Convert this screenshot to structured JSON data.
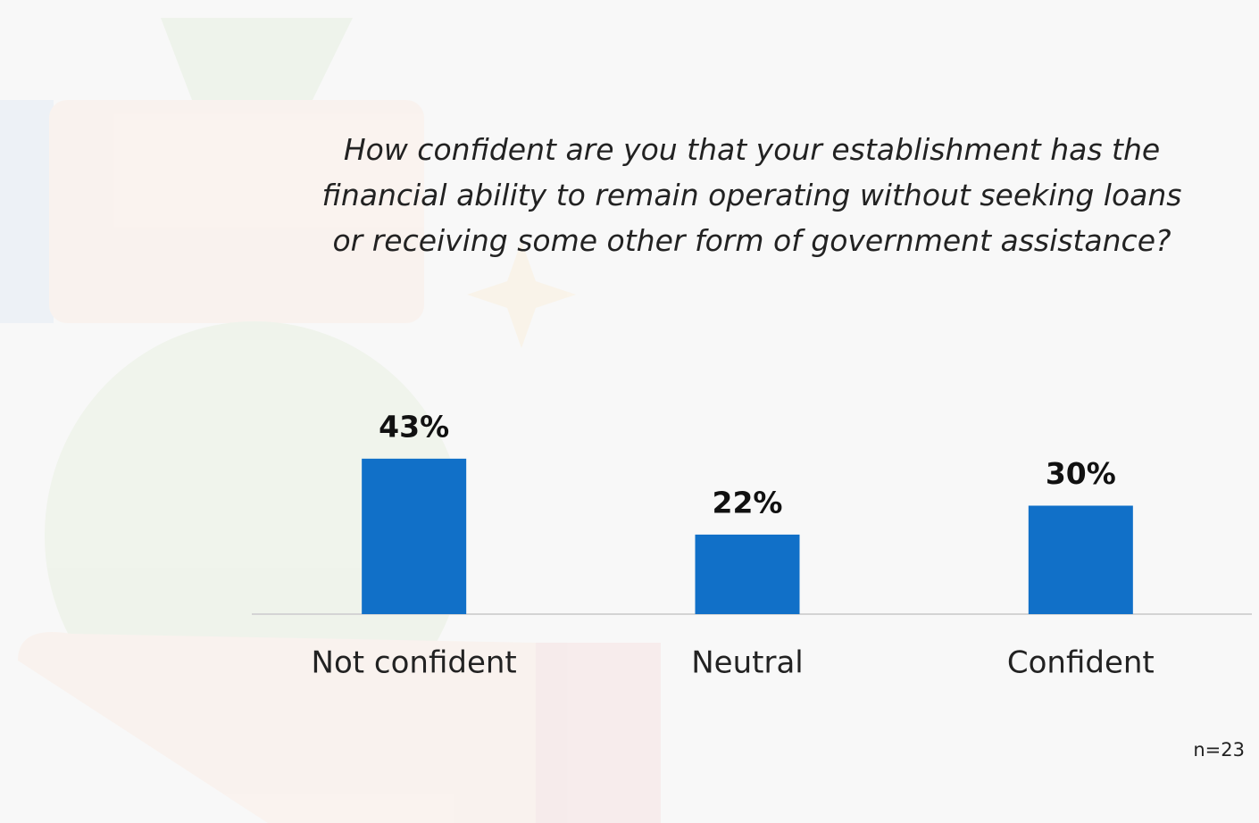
{
  "chart_data": {
    "type": "bar",
    "title": "How confident are you that your establishment has the financial ability to remain operating without seeking loans or receiving some other form of government assistance?",
    "categories": [
      "Not confident",
      "Neutral",
      "Confident"
    ],
    "values": [
      43,
      22,
      30
    ],
    "value_labels": [
      "43%",
      "22%",
      "30%"
    ],
    "color": "#1170c8",
    "note": "n=23"
  }
}
